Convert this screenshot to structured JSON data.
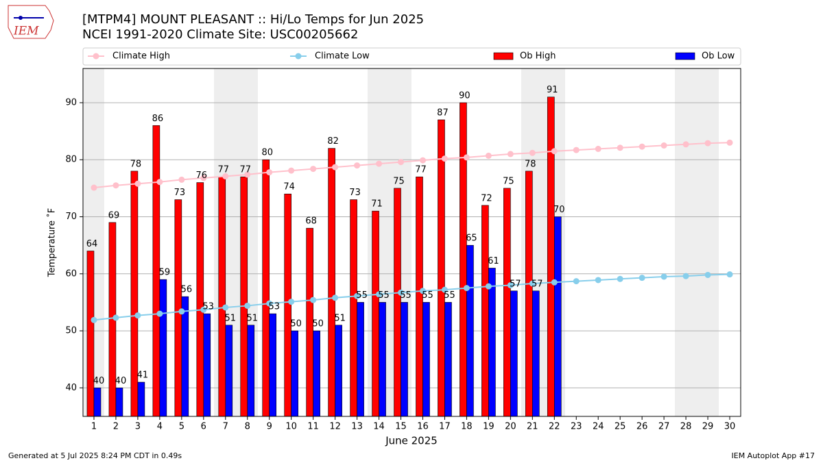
{
  "logo_text": "IEM",
  "footer": {
    "left": "Generated at 5 Jul 2025 8:24 PM CDT in 0.49s",
    "right": "IEM Autoplot App #17"
  },
  "chart_data": {
    "type": "bar",
    "title": "[MTPM4] MOUNT PLEASANT :: Hi/Lo Temps for Jun 2025",
    "subtitle": "NCEI 1991-2020 Climate Site: USC00205662",
    "xlabel": "June 2025",
    "ylabel": "Temperature ˚F",
    "categories": [
      "1",
      "2",
      "3",
      "4",
      "5",
      "6",
      "7",
      "8",
      "9",
      "10",
      "11",
      "12",
      "13",
      "14",
      "15",
      "16",
      "17",
      "18",
      "19",
      "20",
      "21",
      "22",
      "23",
      "24",
      "25",
      "26",
      "27",
      "28",
      "29",
      "30"
    ],
    "series": [
      {
        "name": "Climate High",
        "type": "line",
        "color": "#ffc0cb",
        "values": [
          75.1,
          75.5,
          75.8,
          76.1,
          76.5,
          76.8,
          77.1,
          77.4,
          77.8,
          78.1,
          78.4,
          78.7,
          79.0,
          79.3,
          79.6,
          79.9,
          80.2,
          80.4,
          80.7,
          81.0,
          81.2,
          81.5,
          81.7,
          81.9,
          82.1,
          82.3,
          82.5,
          82.7,
          82.9,
          83.0
        ]
      },
      {
        "name": "Climate Low",
        "type": "line",
        "color": "#87ceeb",
        "values": [
          51.9,
          52.3,
          52.7,
          53.0,
          53.4,
          53.7,
          54.1,
          54.4,
          54.8,
          55.1,
          55.4,
          55.8,
          56.1,
          56.4,
          56.7,
          57.0,
          57.2,
          57.5,
          57.8,
          58.0,
          58.3,
          58.5,
          58.7,
          58.9,
          59.1,
          59.3,
          59.5,
          59.6,
          59.8,
          59.9
        ]
      },
      {
        "name": "Ob High",
        "type": "bar",
        "color": "#ff0000",
        "values": [
          64,
          69,
          78,
          86,
          73,
          76,
          77,
          77,
          80,
          74,
          68,
          82,
          73,
          71,
          75,
          77,
          87,
          90,
          72,
          75,
          78,
          91,
          null,
          null,
          null,
          null,
          null,
          null,
          null,
          null
        ]
      },
      {
        "name": "Ob Low",
        "type": "bar",
        "color": "#0000ff",
        "values": [
          40,
          40,
          41,
          59,
          56,
          53,
          51,
          51,
          53,
          50,
          50,
          51,
          55,
          55,
          55,
          55,
          55,
          65,
          61,
          57,
          57,
          70,
          null,
          null,
          null,
          null,
          null,
          null,
          null,
          null
        ]
      }
    ],
    "ylim": [
      35,
      96
    ],
    "yticks": [
      40,
      50,
      60,
      70,
      80,
      90
    ],
    "grid": true
  }
}
